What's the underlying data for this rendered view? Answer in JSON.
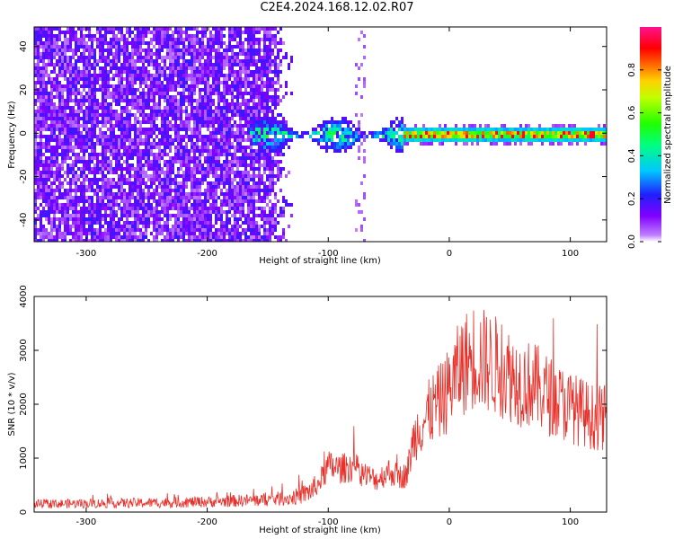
{
  "title": "C2E4.2024.168.12.02.R07",
  "chart_data": [
    {
      "type": "heatmap",
      "xlabel": "Height of straight line (km)",
      "ylabel": "Frequency (Hz)",
      "xlim": [
        -343,
        130
      ],
      "ylim": [
        -50,
        49
      ],
      "xticks": [
        -300,
        -200,
        -100,
        0,
        100
      ],
      "yticks": [
        -40,
        -20,
        0,
        20,
        40
      ],
      "colorbar": {
        "label": "Normalized spectral amplitude",
        "range": [
          0,
          1
        ],
        "ticks": [
          "0.0",
          "0.2",
          "0.4",
          "0.6",
          "0.8"
        ],
        "colormap": "hsv-like: white/violet (0) → blue → cyan → green → yellow → red → magenta (1)"
      },
      "regions": [
        {
          "x": [
            -343,
            -130
          ],
          "description": "broadband noise across all frequencies, amplitude ~0.05-0.2"
        },
        {
          "x": [
            -80,
            -70
          ],
          "description": "faint vertical streak, amplitude ~0.05"
        },
        {
          "x": [
            -160,
            -40
          ],
          "description": "signal concentrated near 0 Hz, amplitude ~0.2-0.6"
        },
        {
          "x": [
            -40,
            130
          ],
          "description": "narrow band near 0 Hz, amplitude ~0.5-1.0"
        }
      ]
    },
    {
      "type": "line",
      "xlabel": "Height of straight line (km)",
      "ylabel": "SNR (10 * v/v)",
      "xlim": [
        -343,
        130
      ],
      "ylim": [
        0,
        4000
      ],
      "xticks": [
        -300,
        -200,
        -100,
        0,
        100
      ],
      "yticks": [
        0,
        1000,
        2000,
        3000,
        4000
      ],
      "series": [
        {
          "color": "#e8302a",
          "x": [
            -343,
            -300,
            -250,
            -200,
            -160,
            -130,
            -120,
            -110,
            -100,
            -90,
            -80,
            -70,
            -60,
            -50,
            -40,
            -35,
            -30,
            -25,
            -20,
            -15,
            -10,
            -5,
            0,
            10,
            20,
            30,
            40,
            50,
            60,
            70,
            80,
            90,
            100,
            110,
            120,
            130
          ],
          "values": [
            150,
            160,
            170,
            190,
            220,
            260,
            330,
            450,
            850,
            800,
            850,
            700,
            600,
            750,
            650,
            700,
            1300,
            1600,
            1700,
            1900,
            2000,
            2100,
            2300,
            2700,
            2900,
            2800,
            2700,
            2550,
            2400,
            2350,
            2200,
            2050,
            1950,
            1850,
            1750,
            1750
          ]
        }
      ]
    }
  ],
  "colors": {
    "line": "#e8302a",
    "axes": "#000000",
    "background": "#ffffff"
  }
}
